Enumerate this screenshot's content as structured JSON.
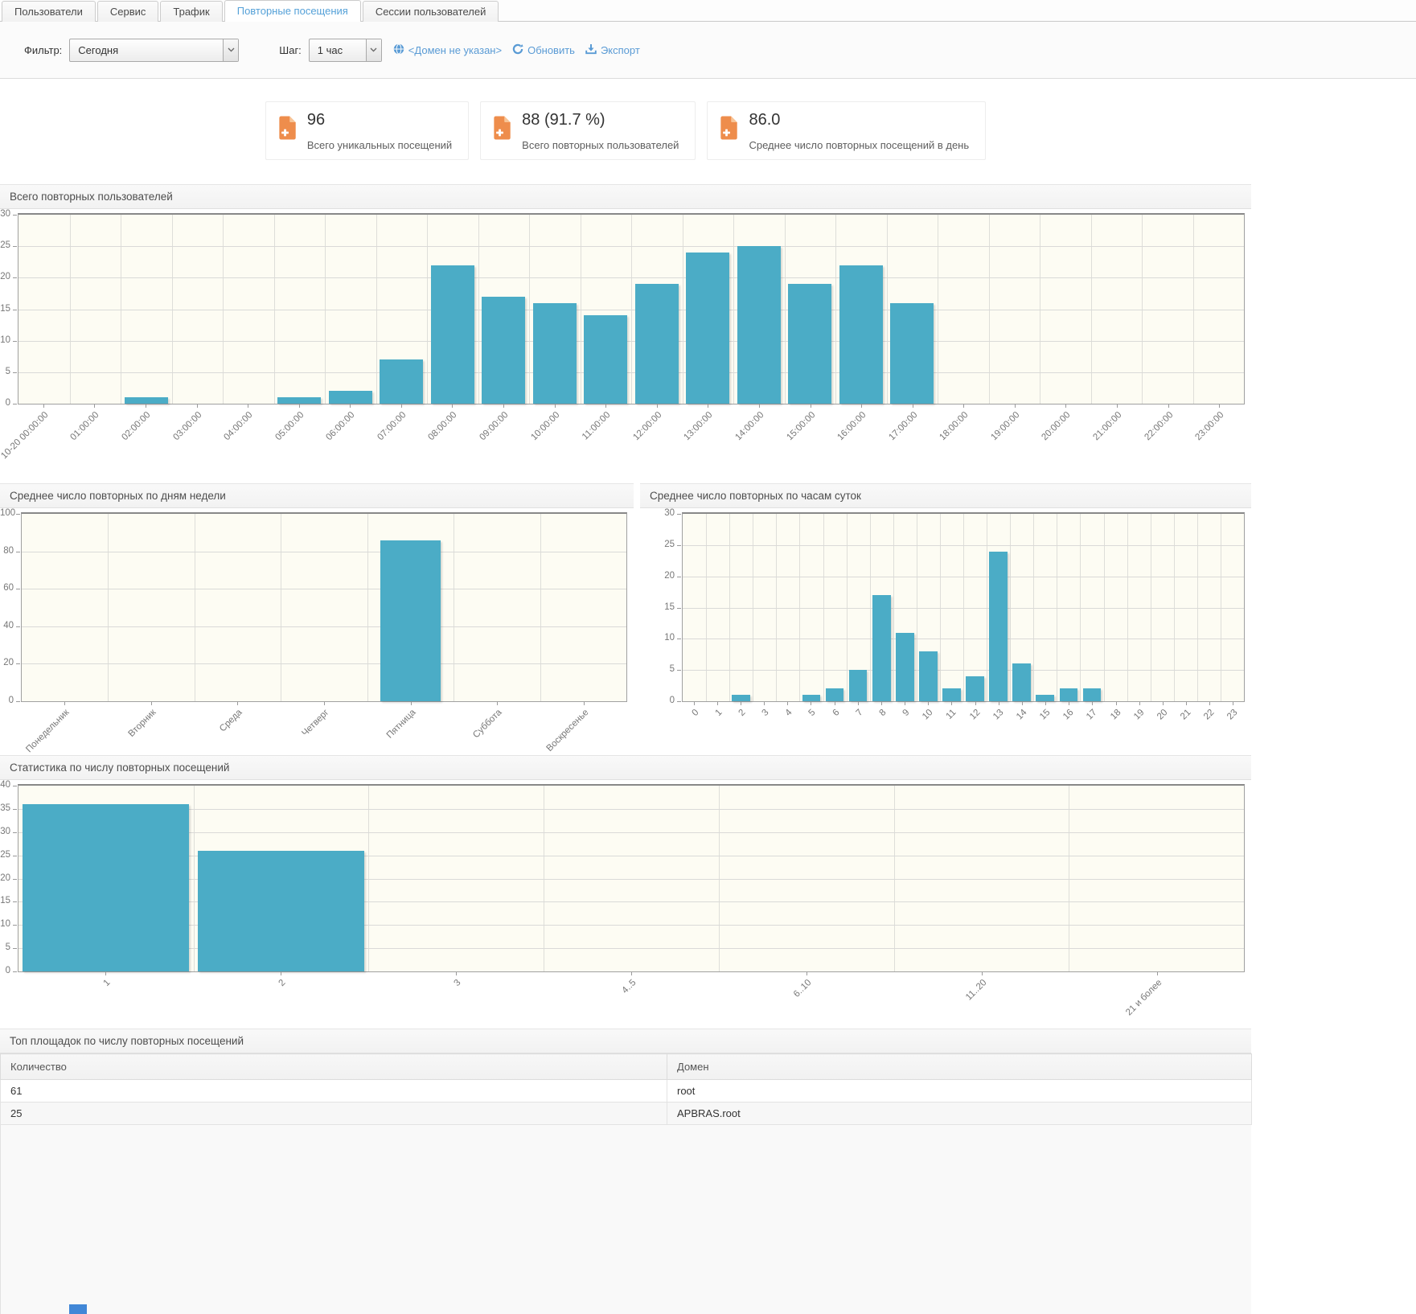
{
  "tabs": {
    "items": [
      {
        "name": "users",
        "label": "Пользователи",
        "active": false
      },
      {
        "name": "service",
        "label": "Сервис",
        "active": false
      },
      {
        "name": "traffic",
        "label": "Трафик",
        "active": false
      },
      {
        "name": "repeat-visits",
        "label": "Повторные посещения",
        "active": true
      },
      {
        "name": "user-sessions",
        "label": "Сессии пользователей",
        "active": false
      }
    ]
  },
  "toolbar": {
    "filter_label": "Фильтр:",
    "filter_value": "Сегодня",
    "step_label": "Шаг:",
    "step_value": "1 час",
    "domain_label": "<Домен не указан>",
    "refresh_label": "Обновить",
    "export_label": "Экспорт"
  },
  "icons": {
    "card": "document-plus-icon",
    "domain": "globe-icon",
    "refresh": "refresh-icon",
    "export": "download-icon",
    "select": "chevron-down-icon"
  },
  "cards": [
    {
      "value": "96",
      "label": "Всего уникальных посещений"
    },
    {
      "value": "88 (91.7 %)",
      "label": "Всего повторных пользователей"
    },
    {
      "value": "86.0",
      "label": "Среднее число повторных посещений в день"
    }
  ],
  "chart_data": [
    {
      "type": "bar",
      "title": "Всего повторных пользователей",
      "categories": [
        "10-20 00:00:00",
        "01:00:00",
        "02:00:00",
        "03:00:00",
        "04:00:00",
        "05:00:00",
        "06:00:00",
        "07:00:00",
        "08:00:00",
        "09:00:00",
        "10:00:00",
        "11:00:00",
        "12:00:00",
        "13:00:00",
        "14:00:00",
        "15:00:00",
        "16:00:00",
        "17:00:00",
        "18:00:00",
        "19:00:00",
        "20:00:00",
        "21:00:00",
        "22:00:00",
        "23:00:00"
      ],
      "values": [
        0,
        0,
        1,
        0,
        0,
        1,
        2,
        7,
        22,
        17,
        16,
        14,
        19,
        24,
        25,
        19,
        22,
        16,
        0,
        0,
        0,
        0,
        0,
        0
      ],
      "xlabel": "",
      "ylabel": "",
      "ylim": [
        0,
        30
      ],
      "ytick": 5,
      "grid": true,
      "legend": "none"
    },
    {
      "type": "bar",
      "title": "Среднее число повторных по дням недели",
      "categories": [
        "Понедельник",
        "Вторник",
        "Среда",
        "Четверг",
        "Пятница",
        "Суббота",
        "Воскресенье"
      ],
      "values": [
        0,
        0,
        0,
        0,
        86,
        0,
        0
      ],
      "xlabel": "",
      "ylabel": "",
      "ylim": [
        0,
        100
      ],
      "ytick": 20,
      "grid": true,
      "legend": "none"
    },
    {
      "type": "bar",
      "title": "Среднее число повторных по часам суток",
      "categories": [
        "0",
        "1",
        "2",
        "3",
        "4",
        "5",
        "6",
        "7",
        "8",
        "9",
        "10",
        "11",
        "12",
        "13",
        "14",
        "15",
        "16",
        "17",
        "18",
        "19",
        "20",
        "21",
        "22",
        "23"
      ],
      "values": [
        0,
        0,
        1,
        0,
        0,
        1,
        2,
        5,
        17,
        11,
        8,
        2,
        4,
        24,
        6,
        1,
        2,
        2,
        0,
        0,
        0,
        0,
        0,
        0
      ],
      "xlabel": "",
      "ylabel": "",
      "ylim": [
        0,
        30
      ],
      "ytick": 5,
      "grid": true,
      "legend": "none"
    },
    {
      "type": "bar",
      "title": "Статистика по числу повторных посещений",
      "categories": [
        "1",
        "2",
        "3",
        "4..5",
        "6..10",
        "11..20",
        "21 и более"
      ],
      "values": [
        36,
        26,
        0,
        0,
        0,
        0,
        0
      ],
      "xlabel": "",
      "ylabel": "",
      "ylim": [
        0,
        40
      ],
      "ytick": 5,
      "grid": true,
      "legend": "none"
    }
  ],
  "table": {
    "title": "Топ площадок по числу повторных посещений",
    "columns": [
      "Количество",
      "Домен"
    ],
    "rows": [
      [
        "61",
        "root"
      ],
      [
        "25",
        "APBRAS.root"
      ]
    ]
  },
  "colors": {
    "bar": "#4bacc6",
    "link": "#5a9bd5",
    "icon_orange": "#ee8d4c",
    "plot_bg": "#fdfcf3"
  }
}
